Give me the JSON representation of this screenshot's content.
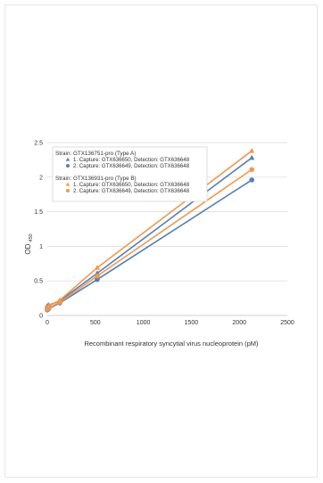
{
  "chart_data": {
    "type": "line",
    "xlabel": "Recombinant respiratory syncytial virus nucleoprotein (pM)",
    "ylabel": "OD",
    "ylabel_sub": "450",
    "xlim": [
      0,
      2500
    ],
    "ylim": [
      0,
      2.5
    ],
    "xticks": [
      "0",
      "500",
      "1000",
      "1500",
      "2000",
      "2500"
    ],
    "yticks": [
      "0",
      "0.5",
      "1",
      "1.5",
      "2",
      "2.5"
    ],
    "grid": "horizontal",
    "legend_position": "top-left",
    "legend": {
      "group_a_title": "Strain: GTX136751-pro (Type A)",
      "group_b_title": "Strain: GTX136931-pro (Type B)"
    },
    "series": [
      {
        "name": "1. Capture: GTX636650, Detection: GTX636648",
        "group": "A",
        "marker": "triangle",
        "color": "#4f81bd",
        "x": [
          0,
          15,
          130,
          520,
          2130
        ],
        "y": [
          0.14,
          0.15,
          0.21,
          0.61,
          2.28
        ]
      },
      {
        "name": "2. Capture: GTX636649, Detection: GTX636648",
        "group": "A",
        "marker": "circle",
        "color": "#4f81bd",
        "x": [
          0,
          15,
          130,
          520,
          2130
        ],
        "y": [
          0.08,
          0.1,
          0.18,
          0.52,
          1.96
        ]
      },
      {
        "name": "1. Capture: GTX636650, Detection: GTX636648",
        "group": "B",
        "marker": "triangle",
        "color": "#f79646",
        "x": [
          0,
          15,
          130,
          520,
          2130
        ],
        "y": [
          0.12,
          0.14,
          0.22,
          0.69,
          2.38
        ]
      },
      {
        "name": "2. Capture: GTX636649, Detection: GTX636648",
        "group": "B",
        "marker": "circle",
        "color": "#f79646",
        "x": [
          0,
          15,
          130,
          520,
          2130
        ],
        "y": [
          0.09,
          0.11,
          0.19,
          0.57,
          2.11
        ]
      }
    ]
  }
}
